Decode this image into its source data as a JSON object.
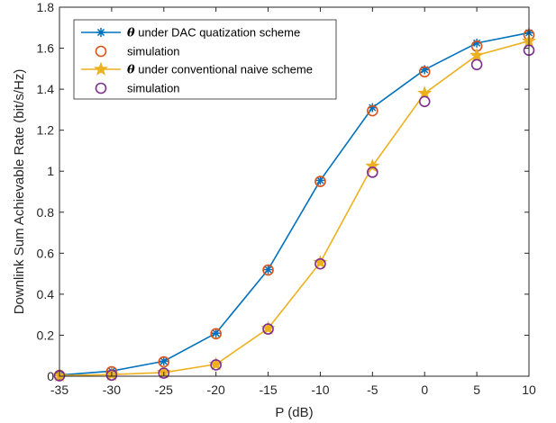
{
  "chart_data": {
    "type": "line",
    "title": "",
    "xlabel": "P (dB)",
    "ylabel": "Downlink Sum Achievable Rate (bit/s/Hz)",
    "xlim": [
      -35,
      10
    ],
    "ylim": [
      0,
      1.8
    ],
    "xticks": [
      -35,
      -30,
      -25,
      -20,
      -15,
      -10,
      -5,
      0,
      5,
      10
    ],
    "yticks": [
      0,
      0.2,
      0.4,
      0.6,
      0.8,
      1,
      1.2,
      1.4,
      1.6,
      1.8
    ],
    "xtick_labels": [
      "-35",
      "-30",
      "-25",
      "-20",
      "-15",
      "-10",
      "-5",
      "0",
      "5",
      "10"
    ],
    "ytick_labels": [
      "0",
      "0.2",
      "0.4",
      "0.6",
      "0.8",
      "1",
      "1.2",
      "1.4",
      "1.6",
      "1.8"
    ],
    "grid": false,
    "legend_position": "top-left",
    "x": [
      -35,
      -30,
      -25,
      -20,
      -15,
      -10,
      -5,
      0,
      5,
      10
    ],
    "series": [
      {
        "key": "dac",
        "legend_symbol": "θ",
        "legend_text": " under DAC quatization scheme",
        "style": "line-marker",
        "marker": "asterisk",
        "color": "#0072BD",
        "values": [
          0.005,
          0.025,
          0.073,
          0.21,
          0.52,
          0.955,
          1.31,
          1.495,
          1.625,
          1.675
        ]
      },
      {
        "key": "dac-sim",
        "legend_symbol": "",
        "legend_text": "simulation",
        "style": "marker",
        "marker": "circle",
        "color": "#D95319",
        "values": [
          0.004,
          0.022,
          0.07,
          0.207,
          0.518,
          0.95,
          1.295,
          1.485,
          1.61,
          1.665
        ]
      },
      {
        "key": "naive",
        "legend_symbol": "θ",
        "legend_text": " under conventional naive scheme",
        "style": "line-marker",
        "marker": "star",
        "color": "#EDB120",
        "values": [
          0.003,
          0.008,
          0.018,
          0.058,
          0.233,
          0.555,
          1.025,
          1.38,
          1.565,
          1.635
        ]
      },
      {
        "key": "naive-sim",
        "legend_symbol": "",
        "legend_text": "simulation",
        "style": "marker",
        "marker": "circle",
        "color": "#7E2F8E",
        "values": [
          0.002,
          0.005,
          0.015,
          0.055,
          0.23,
          0.548,
          0.995,
          1.34,
          1.52,
          1.59
        ]
      }
    ]
  }
}
